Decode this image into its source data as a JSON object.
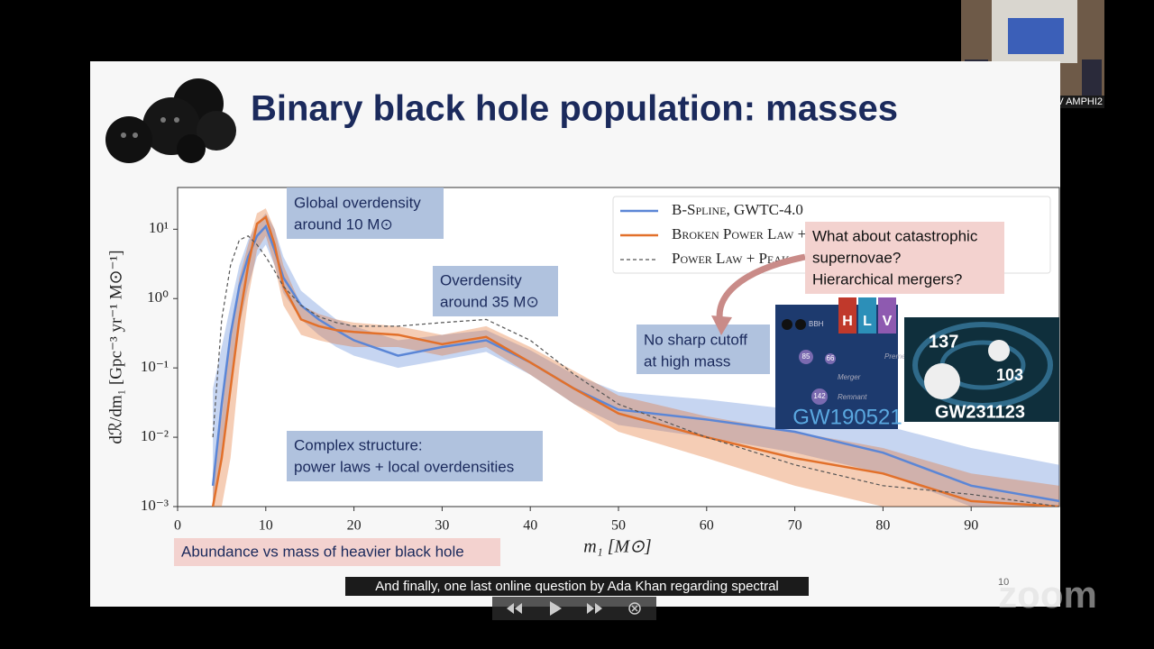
{
  "webcam": {
    "label": "Comue Toulouse MRV AMPHI2"
  },
  "slide": {
    "title": "Binary black hole population: masses",
    "page_number": "10",
    "notes": [
      {
        "lines": [
          "Global overdensity",
          "around 10 M⊙"
        ]
      },
      {
        "lines": [
          "Overdensity",
          "around 35 M⊙"
        ]
      },
      {
        "lines": [
          "No sharp cutoff",
          "at high mass"
        ]
      },
      {
        "lines": [
          "Complex structure:",
          "power laws + local overdensities"
        ]
      }
    ],
    "questions": {
      "lines": [
        "What about catastrophic",
        "supernovae?",
        "Hierarchical mergers?"
      ]
    },
    "footer_note": "Abundance vs mass of heavier black hole",
    "image_1": {
      "label": "GW190521",
      "tag": "BBH",
      "masses": [
        "85",
        "66",
        "142"
      ],
      "stages": [
        "Premerger",
        "Merger",
        "Remnant"
      ],
      "detectors": [
        "H",
        "L",
        "V"
      ]
    },
    "image_2": {
      "label": "GW231123",
      "masses": [
        "137",
        "103"
      ]
    }
  },
  "chart_data": {
    "type": "line",
    "log_y": true,
    "xlabel": "m₁ [M⊙]",
    "ylabel": "dℛ/dm₁ [Gpc⁻³ yr⁻¹ M⊙⁻¹]",
    "xlim": [
      0,
      100
    ],
    "xticks": [
      0,
      10,
      20,
      30,
      40,
      50,
      60,
      70,
      80,
      90
    ],
    "ylim": [
      0.001,
      40
    ],
    "yticks": [
      {
        "value": 0.001,
        "label": "10⁻³"
      },
      {
        "value": 0.01,
        "label": "10⁻²"
      },
      {
        "value": 0.1,
        "label": "10⁻¹"
      },
      {
        "value": 1,
        "label": "10⁰"
      },
      {
        "value": 10,
        "label": "10¹"
      }
    ],
    "x": [
      4,
      5,
      6,
      7,
      8,
      9,
      10,
      11,
      12,
      14,
      16,
      18,
      20,
      25,
      30,
      35,
      40,
      45,
      50,
      60,
      70,
      80,
      90,
      100
    ],
    "series": [
      {
        "name": "B-Spline, GWTC-4.0",
        "color": "#5b86d6",
        "style": "solid",
        "values": [
          0.002,
          0.03,
          0.3,
          1.5,
          4,
          8,
          11,
          5,
          2,
          0.8,
          0.5,
          0.35,
          0.25,
          0.15,
          0.2,
          0.25,
          0.12,
          0.05,
          0.025,
          0.018,
          0.012,
          0.006,
          0.002,
          0.0012
        ],
        "lower": [
          0.001,
          0.005,
          0.05,
          0.4,
          1.5,
          4,
          6,
          3,
          1.2,
          0.5,
          0.3,
          0.2,
          0.15,
          0.1,
          0.13,
          0.17,
          0.08,
          0.03,
          0.015,
          0.01,
          0.006,
          0.003,
          0.001,
          0.001
        ],
        "upper": [
          0.05,
          0.2,
          0.8,
          3,
          7,
          12,
          17,
          10,
          4,
          1.3,
          0.8,
          0.5,
          0.4,
          0.25,
          0.3,
          0.35,
          0.18,
          0.08,
          0.045,
          0.035,
          0.025,
          0.015,
          0.007,
          0.004
        ]
      },
      {
        "name": "Broken Power Law + 2 Peaks, GWTC-4.0",
        "color": "#e2702a",
        "style": "solid",
        "values": [
          0.001,
          0.005,
          0.05,
          0.5,
          3,
          12,
          15,
          6,
          1.5,
          0.5,
          0.4,
          0.35,
          0.33,
          0.3,
          0.22,
          0.28,
          0.12,
          0.05,
          0.022,
          0.01,
          0.005,
          0.003,
          0.0012,
          0.001
        ],
        "lower": [
          0.001,
          0.001,
          0.005,
          0.1,
          1,
          5,
          8,
          3,
          0.8,
          0.3,
          0.25,
          0.22,
          0.2,
          0.2,
          0.15,
          0.2,
          0.08,
          0.03,
          0.012,
          0.005,
          0.002,
          0.001,
          0.001,
          0.001
        ],
        "upper": [
          0.003,
          0.02,
          0.3,
          2,
          6,
          17,
          20,
          10,
          3,
          0.8,
          0.6,
          0.5,
          0.45,
          0.4,
          0.3,
          0.4,
          0.2,
          0.09,
          0.04,
          0.02,
          0.012,
          0.007,
          0.003,
          0.002
        ]
      },
      {
        "name": "Power Law + Peak",
        "color": "#555555",
        "style": "dashed",
        "values": [
          0.01,
          0.5,
          3,
          7,
          8,
          6,
          4,
          2.5,
          1.5,
          0.8,
          0.55,
          0.45,
          0.4,
          0.4,
          0.45,
          0.5,
          0.25,
          0.08,
          0.03,
          0.01,
          0.004,
          0.002,
          0.0015,
          0.001
        ]
      }
    ]
  },
  "player": {
    "caption": "And finally, one last online question by Ada Khan regarding spectral",
    "watermark": "zoom"
  }
}
